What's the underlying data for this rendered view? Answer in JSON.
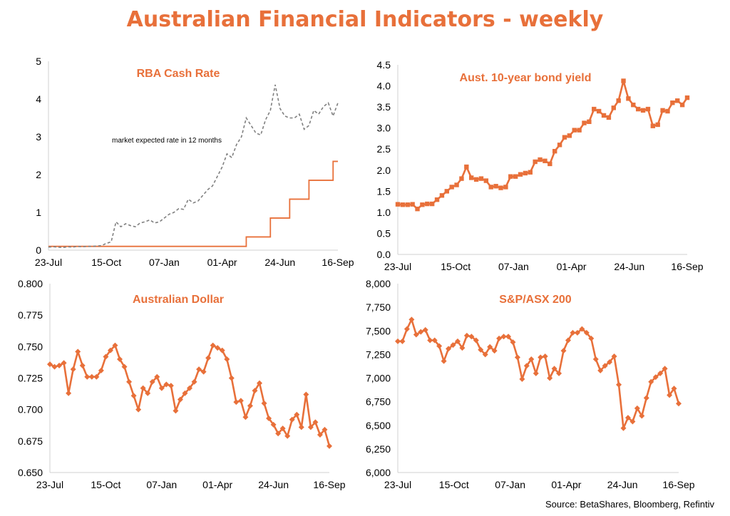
{
  "page": {
    "title": "Australian Financial Indicators - weekly",
    "source": "Source: BetaShares, Bloomberg, Refintiv",
    "accent_color": "#E8703A",
    "dashed_color": "#808080"
  },
  "chart_data": [
    {
      "type": "line",
      "title": "RBA Cash Rate",
      "xlabel": "",
      "ylabel": "",
      "x_tick_labels": [
        "23-Jul",
        "15-Oct",
        "07-Jan",
        "01-Apr",
        "24-Jun",
        "16-Sep"
      ],
      "y_ticks": [
        "0",
        "1",
        "2",
        "3",
        "4",
        "5"
      ],
      "ylim": [
        0,
        5
      ],
      "grid": false,
      "annotation": "market expected rate in 12 months",
      "series": [
        {
          "name": "",
          "style": "solid-step",
          "values": [
            0.1,
            0.1,
            0.1,
            0.1,
            0.1,
            0.1,
            0.1,
            0.1,
            0.1,
            0.1,
            0.1,
            0.1,
            0.1,
            0.1,
            0.1,
            0.1,
            0.1,
            0.1,
            0.1,
            0.1,
            0.1,
            0.1,
            0.1,
            0.1,
            0.1,
            0.1,
            0.1,
            0.1,
            0.1,
            0.1,
            0.1,
            0.1,
            0.1,
            0.1,
            0.1,
            0.1,
            0.1,
            0.1,
            0.1,
            0.1,
            0.1,
            0.35,
            0.35,
            0.35,
            0.35,
            0.35,
            0.85,
            0.85,
            0.85,
            0.85,
            1.35,
            1.35,
            1.35,
            1.35,
            1.85,
            1.85,
            1.85,
            1.85,
            1.85,
            2.35,
            2.35
          ]
        },
        {
          "name": "market expected rate in 12 months",
          "style": "dashed",
          "values": [
            0.08,
            0.09,
            0.08,
            0.07,
            0.09,
            0.08,
            0.1,
            0.09,
            0.1,
            0.1,
            0.11,
            0.12,
            0.18,
            0.22,
            0.75,
            0.62,
            0.7,
            0.65,
            0.62,
            0.72,
            0.75,
            0.8,
            0.72,
            0.75,
            0.85,
            0.95,
            1.0,
            1.1,
            1.08,
            1.35,
            1.25,
            1.3,
            1.45,
            1.6,
            1.7,
            1.95,
            2.2,
            2.55,
            2.45,
            2.8,
            3.0,
            3.5,
            3.3,
            3.1,
            3.05,
            3.45,
            3.7,
            4.38,
            3.75,
            3.55,
            3.5,
            3.5,
            3.6,
            3.2,
            3.3,
            3.7,
            3.6,
            3.8,
            3.9,
            3.55,
            3.9
          ]
        }
      ]
    },
    {
      "type": "line",
      "title": "Aust. 10-year bond yield",
      "xlabel": "",
      "ylabel": "",
      "x_tick_labels": [
        "23-Jul",
        "15-Oct",
        "07-Jan",
        "01-Apr",
        "24-Jun",
        "16-Sep"
      ],
      "y_ticks": [
        "0.0",
        "0.5",
        "1.0",
        "1.5",
        "2.0",
        "2.5",
        "3.0",
        "3.5",
        "4.0",
        "4.5"
      ],
      "ylim": [
        0,
        4.5
      ],
      "grid": false,
      "series": [
        {
          "name": "",
          "values": [
            1.19,
            1.18,
            1.18,
            1.19,
            1.08,
            1.18,
            1.2,
            1.2,
            1.3,
            1.4,
            1.5,
            1.6,
            1.65,
            1.8,
            2.08,
            1.82,
            1.78,
            1.8,
            1.75,
            1.6,
            1.62,
            1.58,
            1.6,
            1.85,
            1.85,
            1.9,
            1.93,
            1.95,
            2.2,
            2.25,
            2.22,
            2.15,
            2.45,
            2.6,
            2.78,
            2.82,
            2.95,
            2.95,
            3.12,
            3.15,
            3.45,
            3.4,
            3.3,
            3.25,
            3.48,
            3.65,
            4.12,
            3.7,
            3.55,
            3.45,
            3.42,
            3.45,
            3.05,
            3.08,
            3.42,
            3.4,
            3.6,
            3.65,
            3.55,
            3.72
          ]
        }
      ]
    },
    {
      "type": "line",
      "title": "Australian Dollar",
      "xlabel": "",
      "ylabel": "",
      "x_tick_labels": [
        "23-Jul",
        "15-Oct",
        "07-Jan",
        "01-Apr",
        "24-Jun",
        "16-Sep"
      ],
      "y_ticks": [
        "0.650",
        "0.675",
        "0.700",
        "0.725",
        "0.750",
        "0.775",
        "0.800"
      ],
      "ylim": [
        0.65,
        0.8
      ],
      "grid": false,
      "series": [
        {
          "name": "",
          "values": [
            0.736,
            0.734,
            0.735,
            0.737,
            0.713,
            0.732,
            0.746,
            0.735,
            0.726,
            0.726,
            0.726,
            0.731,
            0.742,
            0.747,
            0.751,
            0.74,
            0.734,
            0.722,
            0.711,
            0.7,
            0.717,
            0.713,
            0.722,
            0.726,
            0.717,
            0.72,
            0.719,
            0.699,
            0.708,
            0.713,
            0.717,
            0.722,
            0.732,
            0.73,
            0.741,
            0.751,
            0.749,
            0.747,
            0.74,
            0.725,
            0.706,
            0.707,
            0.694,
            0.703,
            0.715,
            0.721,
            0.705,
            0.693,
            0.688,
            0.681,
            0.685,
            0.679,
            0.692,
            0.696,
            0.686,
            0.712,
            0.686,
            0.69,
            0.68,
            0.684,
            0.671
          ]
        }
      ]
    },
    {
      "type": "line",
      "title": "S&P/ASX 200",
      "xlabel": "",
      "ylabel": "",
      "x_tick_labels": [
        "23-Jul",
        "15-Oct",
        "07-Jan",
        "01-Apr",
        "24-Jun",
        "16-Sep"
      ],
      "y_ticks": [
        "6,000",
        "6,250",
        "6,500",
        "6,750",
        "7,000",
        "7,250",
        "7,500",
        "7,750",
        "8,000"
      ],
      "ylim": [
        6000,
        8000
      ],
      "grid": false,
      "series": [
        {
          "name": "",
          "values": [
            7390,
            7390,
            7520,
            7620,
            7460,
            7490,
            7510,
            7400,
            7400,
            7340,
            7180,
            7310,
            7350,
            7390,
            7320,
            7450,
            7440,
            7400,
            7300,
            7250,
            7330,
            7290,
            7420,
            7440,
            7440,
            7380,
            7220,
            6990,
            7130,
            7200,
            7050,
            7220,
            7230,
            7000,
            7100,
            7050,
            7290,
            7400,
            7480,
            7480,
            7520,
            7480,
            7420,
            7200,
            7080,
            7130,
            7170,
            7230,
            6930,
            6470,
            6580,
            6540,
            6680,
            6600,
            6790,
            6960,
            7010,
            7050,
            7100,
            6820,
            6890,
            6730
          ]
        }
      ]
    }
  ]
}
